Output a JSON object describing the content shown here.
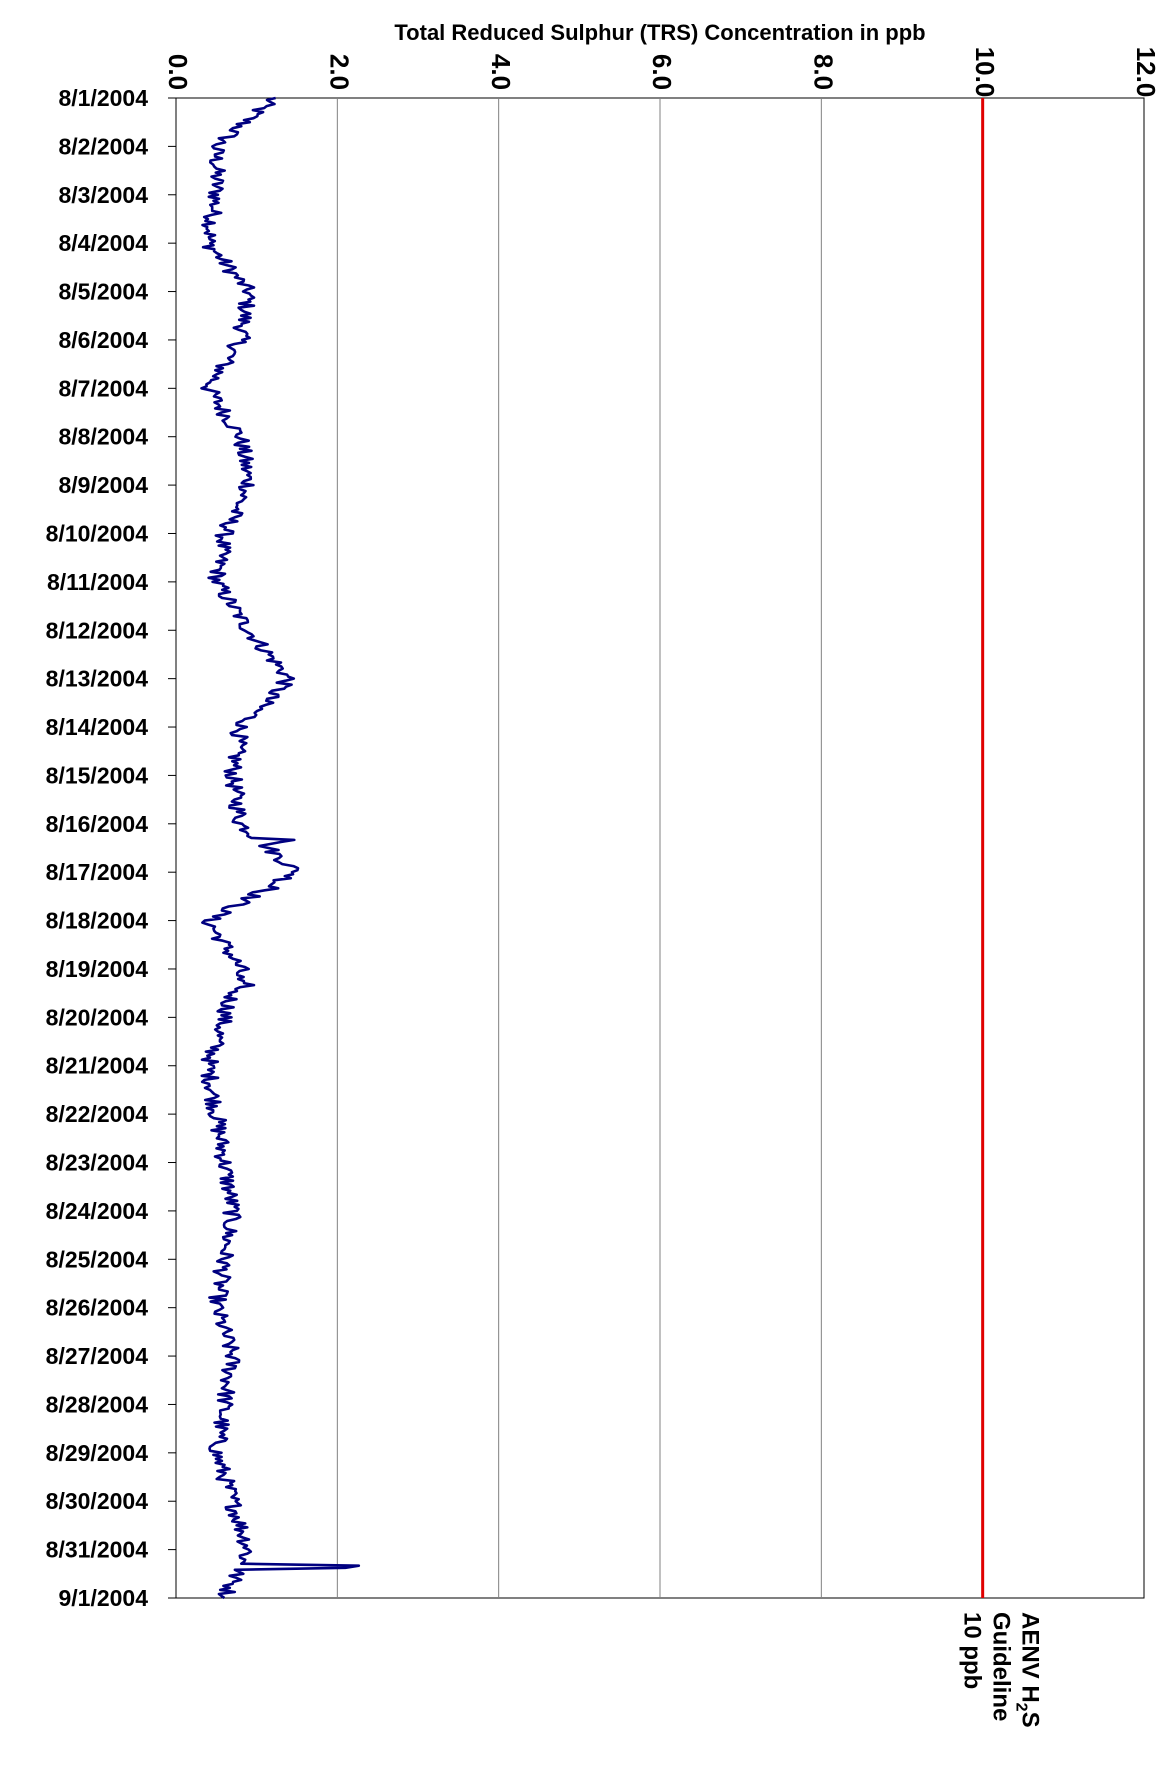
{
  "chart_data": {
    "type": "line",
    "orientation": "rotated",
    "title": "Total Reduced Sulphur (TRS) Concentration in ppb",
    "xlabel": "",
    "ylabel": "",
    "value_axis": {
      "range": [
        0,
        12
      ],
      "ticks": [
        "0.0",
        "2.0",
        "4.0",
        "6.0",
        "8.0",
        "10.0",
        "12.0"
      ]
    },
    "date_axis": {
      "range": [
        "8/1/2004",
        "9/1/2004"
      ],
      "ticks": [
        "8/1/2004",
        "8/2/2004",
        "8/3/2004",
        "8/4/2004",
        "8/5/2004",
        "8/6/2004",
        "8/7/2004",
        "8/8/2004",
        "8/9/2004",
        "8/10/2004",
        "8/11/2004",
        "8/12/2004",
        "8/13/2004",
        "8/14/2004",
        "8/15/2004",
        "8/16/2004",
        "8/17/2004",
        "8/18/2004",
        "8/19/2004",
        "8/20/2004",
        "8/21/2004",
        "8/22/2004",
        "8/23/2004",
        "8/24/2004",
        "8/25/2004",
        "8/26/2004",
        "8/27/2004",
        "8/28/2004",
        "8/29/2004",
        "8/30/2004",
        "8/31/2004",
        "9/1/2004"
      ]
    },
    "grid": true,
    "guideline": {
      "value": 10,
      "color": "#e00000",
      "label_lines": [
        "AENV H2S",
        "Guideline",
        "10 ppb"
      ]
    },
    "series": [
      {
        "color": "#000080",
        "dates": [
          "8/1/2004",
          "8/2/2004",
          "8/3/2004",
          "8/4/2004",
          "8/5/2004",
          "8/6/2004",
          "8/7/2004",
          "8/8/2004",
          "8/9/2004",
          "8/10/2004",
          "8/11/2004",
          "8/12/2004",
          "8/13/2004",
          "8/14/2004",
          "8/15/2004",
          "8/16/2004",
          "8/17/2004",
          "8/18/2004",
          "8/19/2004",
          "8/20/2004",
          "8/21/2004",
          "8/22/2004",
          "8/23/2004",
          "8/24/2004",
          "8/25/2004",
          "8/26/2004",
          "8/27/2004",
          "8/28/2004",
          "8/29/2004",
          "8/30/2004",
          "8/31/2004",
          "9/1/2004"
        ],
        "values": [
          1.2,
          0.5,
          0.5,
          0.4,
          0.9,
          0.8,
          0.4,
          0.8,
          0.9,
          0.6,
          0.5,
          0.9,
          1.4,
          0.8,
          0.7,
          0.8,
          1.5,
          0.4,
          0.8,
          0.6,
          0.4,
          0.5,
          0.6,
          0.7,
          0.6,
          0.5,
          0.7,
          0.6,
          0.5,
          0.7,
          0.9,
          0.6
        ],
        "peaks": [
          {
            "date": "8/13/2004",
            "value": 1.6
          },
          {
            "date": "8/16/2004",
            "value": 1.8
          },
          {
            "date": "8/17/2004",
            "value": 1.6
          },
          {
            "date": "8/19/2004",
            "value": 1.3
          },
          {
            "date": "8/31/2004",
            "value": 2.6
          }
        ]
      }
    ]
  }
}
